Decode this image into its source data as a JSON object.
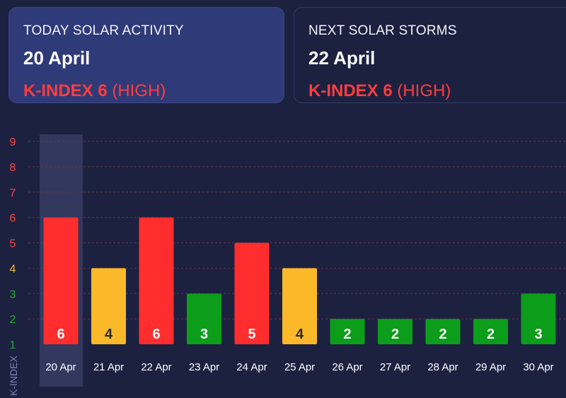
{
  "cards": {
    "today": {
      "heading": "TODAY SOLAR ACTIVITY",
      "date": "20 April",
      "kindex_label": "K-INDEX 6",
      "level": "(HIGH)"
    },
    "next": {
      "heading": "NEXT SOLAR STORMS",
      "date": "22 April",
      "kindex_label": "K-INDEX 6",
      "level": "(HIGH)"
    }
  },
  "colors": {
    "background": "#1c2140",
    "high": "#ff2d2d",
    "moderate": "#fbb829",
    "low": "#0c9d1a",
    "highlight_card": "#2f3a78"
  },
  "chart_data": {
    "type": "bar",
    "ylabel": "K-INDEX",
    "ylim": [
      1,
      9
    ],
    "yticks": [
      1,
      2,
      3,
      4,
      5,
      6,
      7,
      8,
      9
    ],
    "grid": true,
    "highlighted_category": "20 Apr",
    "categories": [
      "20 Apr",
      "21 Apr",
      "22 Apr",
      "23 Apr",
      "24 Apr",
      "25 Apr",
      "26 Apr",
      "27 Apr",
      "28 Apr",
      "29 Apr",
      "30 Apr"
    ],
    "values": [
      6,
      4,
      6,
      3,
      5,
      4,
      2,
      2,
      2,
      2,
      3
    ]
  }
}
